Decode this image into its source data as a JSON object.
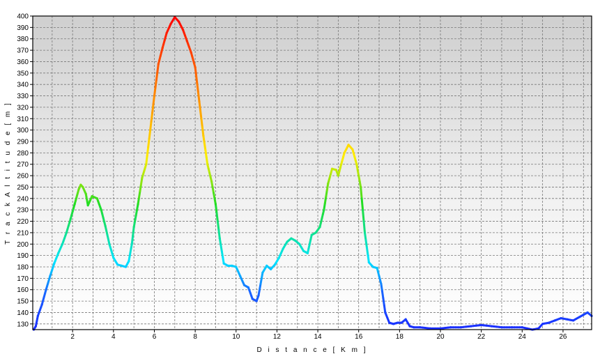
{
  "chart_data": {
    "type": "line",
    "title": "",
    "xlabel": "D i s t a n c e   [ K m ]",
    "ylabel": "T r a c k   A l t i t u d e   [ m ]",
    "xlim": [
      0.05,
      27.4
    ],
    "ylim": [
      125,
      400
    ],
    "x_ticks": [
      2,
      4,
      6,
      8,
      10,
      12,
      14,
      16,
      18,
      20,
      22,
      24,
      26
    ],
    "y_ticks": [
      130,
      140,
      150,
      160,
      170,
      180,
      190,
      200,
      210,
      220,
      230,
      240,
      250,
      260,
      270,
      280,
      290,
      300,
      310,
      320,
      330,
      340,
      350,
      360,
      370,
      380,
      390,
      400
    ],
    "grid": true,
    "gridlines_x_every": 1,
    "background": "vertical gradient from light grey (top) to white (bottom)",
    "line_color": "colored by altitude: blue (low) to cyan, green, yellow, orange, red (high)",
    "colors": {
      "low": "#1a2cff",
      "cyan": "#00e5ff",
      "green": "#22dd22",
      "yellow": "#ffee00",
      "orange": "#ff8800",
      "high": "#ff0000",
      "grid": "#777777",
      "axis": "#000000"
    },
    "series": [
      {
        "name": "",
        "points": [
          [
            0.1,
            125
          ],
          [
            0.2,
            128
          ],
          [
            0.3,
            137
          ],
          [
            0.5,
            147
          ],
          [
            0.7,
            160
          ],
          [
            0.9,
            172
          ],
          [
            1.1,
            183
          ],
          [
            1.3,
            192
          ],
          [
            1.5,
            200
          ],
          [
            1.7,
            210
          ],
          [
            1.9,
            222
          ],
          [
            2.1,
            235
          ],
          [
            2.3,
            248
          ],
          [
            2.4,
            252
          ],
          [
            2.5,
            250
          ],
          [
            2.65,
            244
          ],
          [
            2.75,
            234
          ],
          [
            2.85,
            238
          ],
          [
            2.95,
            242
          ],
          [
            3.2,
            240
          ],
          [
            3.4,
            230
          ],
          [
            3.6,
            216
          ],
          [
            3.8,
            200
          ],
          [
            4.0,
            188
          ],
          [
            4.2,
            182
          ],
          [
            4.4,
            181
          ],
          [
            4.6,
            180
          ],
          [
            4.75,
            185
          ],
          [
            4.9,
            200
          ],
          [
            5.0,
            215
          ],
          [
            5.2,
            235
          ],
          [
            5.4,
            258
          ],
          [
            5.6,
            270
          ],
          [
            5.8,
            300
          ],
          [
            6.0,
            330
          ],
          [
            6.2,
            358
          ],
          [
            6.4,
            372
          ],
          [
            6.6,
            385
          ],
          [
            6.8,
            393
          ],
          [
            7.0,
            399
          ],
          [
            7.2,
            395
          ],
          [
            7.4,
            388
          ],
          [
            7.6,
            378
          ],
          [
            7.8,
            368
          ],
          [
            8.0,
            355
          ],
          [
            8.2,
            325
          ],
          [
            8.4,
            295
          ],
          [
            8.6,
            270
          ],
          [
            8.8,
            255
          ],
          [
            9.0,
            235
          ],
          [
            9.2,
            205
          ],
          [
            9.4,
            183
          ],
          [
            9.6,
            181
          ],
          [
            9.8,
            181
          ],
          [
            10.0,
            180
          ],
          [
            10.2,
            172
          ],
          [
            10.4,
            164
          ],
          [
            10.6,
            162
          ],
          [
            10.8,
            152
          ],
          [
            11.0,
            150
          ],
          [
            11.1,
            155
          ],
          [
            11.3,
            175
          ],
          [
            11.5,
            181
          ],
          [
            11.7,
            178
          ],
          [
            11.9,
            182
          ],
          [
            12.1,
            188
          ],
          [
            12.3,
            196
          ],
          [
            12.5,
            202
          ],
          [
            12.7,
            205
          ],
          [
            12.9,
            203
          ],
          [
            13.1,
            200
          ],
          [
            13.3,
            194
          ],
          [
            13.5,
            192
          ],
          [
            13.7,
            208
          ],
          [
            13.9,
            210
          ],
          [
            14.1,
            215
          ],
          [
            14.3,
            230
          ],
          [
            14.5,
            253
          ],
          [
            14.7,
            266
          ],
          [
            14.9,
            265
          ],
          [
            15.0,
            260
          ],
          [
            15.1,
            267
          ],
          [
            15.3,
            280
          ],
          [
            15.5,
            287
          ],
          [
            15.7,
            283
          ],
          [
            15.9,
            270
          ],
          [
            16.1,
            250
          ],
          [
            16.3,
            210
          ],
          [
            16.5,
            184
          ],
          [
            16.7,
            180
          ],
          [
            16.9,
            179
          ],
          [
            17.1,
            165
          ],
          [
            17.3,
            140
          ],
          [
            17.5,
            131
          ],
          [
            17.7,
            130
          ],
          [
            17.9,
            131
          ],
          [
            18.1,
            131
          ],
          [
            18.3,
            134
          ],
          [
            18.5,
            128
          ],
          [
            18.7,
            127
          ],
          [
            19.0,
            127
          ],
          [
            19.5,
            126
          ],
          [
            20.0,
            126
          ],
          [
            20.5,
            127
          ],
          [
            21.0,
            127
          ],
          [
            21.5,
            128
          ],
          [
            22.0,
            129
          ],
          [
            22.5,
            128
          ],
          [
            23.0,
            127
          ],
          [
            23.5,
            127
          ],
          [
            24.0,
            127
          ],
          [
            24.5,
            125
          ],
          [
            24.8,
            126
          ],
          [
            25.0,
            130
          ],
          [
            25.3,
            131
          ],
          [
            25.6,
            133
          ],
          [
            25.9,
            135
          ],
          [
            26.2,
            134
          ],
          [
            26.5,
            133
          ],
          [
            26.8,
            136
          ],
          [
            27.0,
            138
          ],
          [
            27.2,
            140
          ],
          [
            27.4,
            137
          ]
        ]
      }
    ]
  }
}
